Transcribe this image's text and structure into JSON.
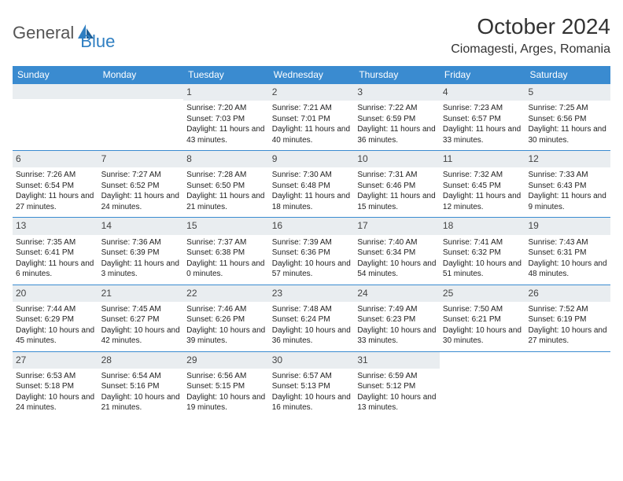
{
  "logo": {
    "part1": "General",
    "part2": "Blue"
  },
  "title": "October 2024",
  "location": "Ciomagesti, Arges, Romania",
  "colors": {
    "header_bar": "#3a8bd0",
    "daynum_bg": "#e9edf0",
    "week_border": "#3a8bd0",
    "logo_blue": "#2f7fc2",
    "logo_gray": "#555555"
  },
  "daysOfWeek": [
    "Sunday",
    "Monday",
    "Tuesday",
    "Wednesday",
    "Thursday",
    "Friday",
    "Saturday"
  ],
  "weeks": [
    [
      {
        "n": "",
        "sr": "",
        "ss": "",
        "dl": ""
      },
      {
        "n": "",
        "sr": "",
        "ss": "",
        "dl": ""
      },
      {
        "n": "1",
        "sr": "Sunrise: 7:20 AM",
        "ss": "Sunset: 7:03 PM",
        "dl": "Daylight: 11 hours and 43 minutes."
      },
      {
        "n": "2",
        "sr": "Sunrise: 7:21 AM",
        "ss": "Sunset: 7:01 PM",
        "dl": "Daylight: 11 hours and 40 minutes."
      },
      {
        "n": "3",
        "sr": "Sunrise: 7:22 AM",
        "ss": "Sunset: 6:59 PM",
        "dl": "Daylight: 11 hours and 36 minutes."
      },
      {
        "n": "4",
        "sr": "Sunrise: 7:23 AM",
        "ss": "Sunset: 6:57 PM",
        "dl": "Daylight: 11 hours and 33 minutes."
      },
      {
        "n": "5",
        "sr": "Sunrise: 7:25 AM",
        "ss": "Sunset: 6:56 PM",
        "dl": "Daylight: 11 hours and 30 minutes."
      }
    ],
    [
      {
        "n": "6",
        "sr": "Sunrise: 7:26 AM",
        "ss": "Sunset: 6:54 PM",
        "dl": "Daylight: 11 hours and 27 minutes."
      },
      {
        "n": "7",
        "sr": "Sunrise: 7:27 AM",
        "ss": "Sunset: 6:52 PM",
        "dl": "Daylight: 11 hours and 24 minutes."
      },
      {
        "n": "8",
        "sr": "Sunrise: 7:28 AM",
        "ss": "Sunset: 6:50 PM",
        "dl": "Daylight: 11 hours and 21 minutes."
      },
      {
        "n": "9",
        "sr": "Sunrise: 7:30 AM",
        "ss": "Sunset: 6:48 PM",
        "dl": "Daylight: 11 hours and 18 minutes."
      },
      {
        "n": "10",
        "sr": "Sunrise: 7:31 AM",
        "ss": "Sunset: 6:46 PM",
        "dl": "Daylight: 11 hours and 15 minutes."
      },
      {
        "n": "11",
        "sr": "Sunrise: 7:32 AM",
        "ss": "Sunset: 6:45 PM",
        "dl": "Daylight: 11 hours and 12 minutes."
      },
      {
        "n": "12",
        "sr": "Sunrise: 7:33 AM",
        "ss": "Sunset: 6:43 PM",
        "dl": "Daylight: 11 hours and 9 minutes."
      }
    ],
    [
      {
        "n": "13",
        "sr": "Sunrise: 7:35 AM",
        "ss": "Sunset: 6:41 PM",
        "dl": "Daylight: 11 hours and 6 minutes."
      },
      {
        "n": "14",
        "sr": "Sunrise: 7:36 AM",
        "ss": "Sunset: 6:39 PM",
        "dl": "Daylight: 11 hours and 3 minutes."
      },
      {
        "n": "15",
        "sr": "Sunrise: 7:37 AM",
        "ss": "Sunset: 6:38 PM",
        "dl": "Daylight: 11 hours and 0 minutes."
      },
      {
        "n": "16",
        "sr": "Sunrise: 7:39 AM",
        "ss": "Sunset: 6:36 PM",
        "dl": "Daylight: 10 hours and 57 minutes."
      },
      {
        "n": "17",
        "sr": "Sunrise: 7:40 AM",
        "ss": "Sunset: 6:34 PM",
        "dl": "Daylight: 10 hours and 54 minutes."
      },
      {
        "n": "18",
        "sr": "Sunrise: 7:41 AM",
        "ss": "Sunset: 6:32 PM",
        "dl": "Daylight: 10 hours and 51 minutes."
      },
      {
        "n": "19",
        "sr": "Sunrise: 7:43 AM",
        "ss": "Sunset: 6:31 PM",
        "dl": "Daylight: 10 hours and 48 minutes."
      }
    ],
    [
      {
        "n": "20",
        "sr": "Sunrise: 7:44 AM",
        "ss": "Sunset: 6:29 PM",
        "dl": "Daylight: 10 hours and 45 minutes."
      },
      {
        "n": "21",
        "sr": "Sunrise: 7:45 AM",
        "ss": "Sunset: 6:27 PM",
        "dl": "Daylight: 10 hours and 42 minutes."
      },
      {
        "n": "22",
        "sr": "Sunrise: 7:46 AM",
        "ss": "Sunset: 6:26 PM",
        "dl": "Daylight: 10 hours and 39 minutes."
      },
      {
        "n": "23",
        "sr": "Sunrise: 7:48 AM",
        "ss": "Sunset: 6:24 PM",
        "dl": "Daylight: 10 hours and 36 minutes."
      },
      {
        "n": "24",
        "sr": "Sunrise: 7:49 AM",
        "ss": "Sunset: 6:23 PM",
        "dl": "Daylight: 10 hours and 33 minutes."
      },
      {
        "n": "25",
        "sr": "Sunrise: 7:50 AM",
        "ss": "Sunset: 6:21 PM",
        "dl": "Daylight: 10 hours and 30 minutes."
      },
      {
        "n": "26",
        "sr": "Sunrise: 7:52 AM",
        "ss": "Sunset: 6:19 PM",
        "dl": "Daylight: 10 hours and 27 minutes."
      }
    ],
    [
      {
        "n": "27",
        "sr": "Sunrise: 6:53 AM",
        "ss": "Sunset: 5:18 PM",
        "dl": "Daylight: 10 hours and 24 minutes."
      },
      {
        "n": "28",
        "sr": "Sunrise: 6:54 AM",
        "ss": "Sunset: 5:16 PM",
        "dl": "Daylight: 10 hours and 21 minutes."
      },
      {
        "n": "29",
        "sr": "Sunrise: 6:56 AM",
        "ss": "Sunset: 5:15 PM",
        "dl": "Daylight: 10 hours and 19 minutes."
      },
      {
        "n": "30",
        "sr": "Sunrise: 6:57 AM",
        "ss": "Sunset: 5:13 PM",
        "dl": "Daylight: 10 hours and 16 minutes."
      },
      {
        "n": "31",
        "sr": "Sunrise: 6:59 AM",
        "ss": "Sunset: 5:12 PM",
        "dl": "Daylight: 10 hours and 13 minutes."
      },
      {
        "n": "",
        "sr": "",
        "ss": "",
        "dl": ""
      },
      {
        "n": "",
        "sr": "",
        "ss": "",
        "dl": ""
      }
    ]
  ]
}
